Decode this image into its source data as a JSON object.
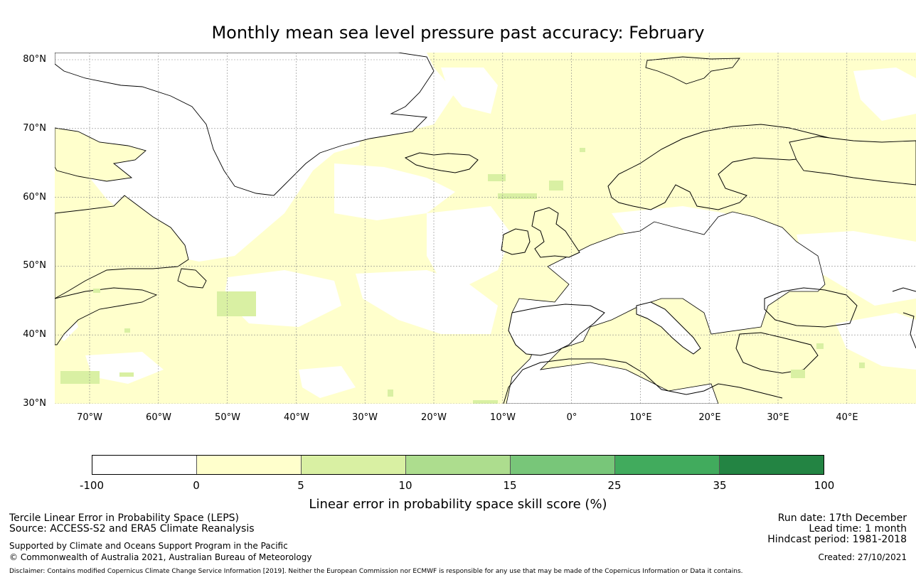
{
  "title": "Monthly mean sea level pressure past accuracy: February",
  "map": {
    "lat_labels": [
      "80°N",
      "70°N",
      "60°N",
      "50°N",
      "40°N",
      "30°N"
    ],
    "lon_labels": [
      "70°W",
      "60°W",
      "50°W",
      "40°W",
      "30°W",
      "20°W",
      "10°W",
      "0°",
      "10°E",
      "20°E",
      "30°E",
      "40°E"
    ],
    "extent": {
      "lon_min": -75,
      "lon_max": 50,
      "lat_min": 30,
      "lat_max": 81
    },
    "ocean_base_color": "#ffffcc",
    "land_color": "#ffffff",
    "coastline_color": "#000000"
  },
  "colorbar": {
    "ticks": [
      "-100",
      "0",
      "5",
      "10",
      "15",
      "25",
      "35",
      "100"
    ],
    "colors": [
      "#ffffff",
      "#ffffcc",
      "#d9f0a3",
      "#addd8e",
      "#78c679",
      "#41ab5d",
      "#238443"
    ],
    "label": "Linear error in probability space skill score (%)"
  },
  "info": {
    "method": "Tercile Linear Error in Probability Space (LEPS)",
    "source": "Source: ACCESS-S2 and ERA5 Climate Reanalysis",
    "support": "Supported by Climate and Oceans Support Program in the Pacific",
    "copyright": "© Commonwealth of Australia 2021, Australian Bureau of Meteorology",
    "run_date": "Run date: 17th December",
    "lead_time": "Lead time: 1 month",
    "hindcast": "Hindcast period: 1981-2018",
    "created": "Created: 27/10/2021",
    "disclaimer": "Disclaimer: Contains modified Copernicus Climate Change Service Information [2019]. Neither the European Commission nor ECMWF is responsible for any use that may be made of the Copernicus Information or Data it contains."
  }
}
